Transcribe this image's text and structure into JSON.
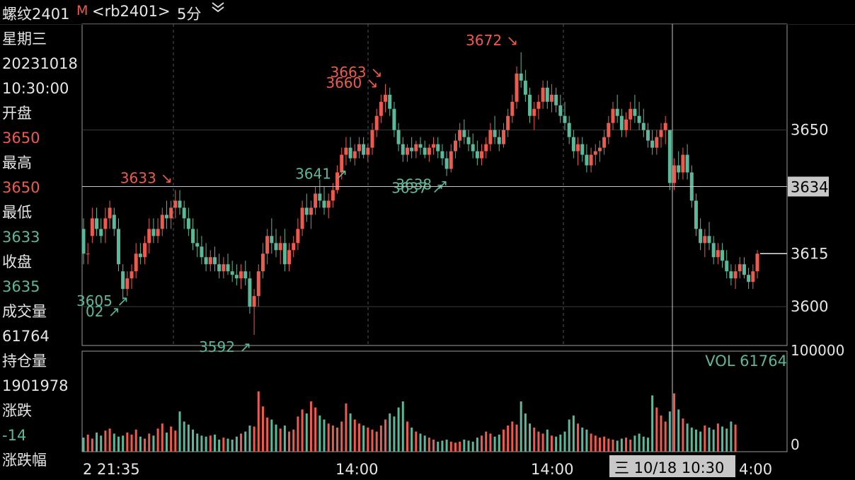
{
  "header": {
    "symbol_name": "螺纹2401",
    "main_flag": "M",
    "symbol_code": "<rb2401>",
    "period": "5分",
    "period_dropdown_icon": "double-chevron-down-icon"
  },
  "info_panel": {
    "weekday": "星期三",
    "date": "20231018",
    "time": "10:30:00",
    "fields": [
      {
        "label": "开盘",
        "value": "3650",
        "color": "red"
      },
      {
        "label": "最高",
        "value": "3650",
        "color": "red"
      },
      {
        "label": "最低",
        "value": "3633",
        "color": "green"
      },
      {
        "label": "收盘",
        "value": "3635",
        "color": "green"
      },
      {
        "label": "成交量",
        "value": "61764",
        "color": "normal"
      },
      {
        "label": "持仓量",
        "value": "1901978",
        "color": "normal"
      },
      {
        "label": "涨跌",
        "value": "-14",
        "color": "green"
      },
      {
        "label": "涨跌幅",
        "value": "",
        "color": "normal"
      }
    ]
  },
  "colors": {
    "up": "#ee5b4e",
    "down": "#5cb89a",
    "grid": "#3a3a3a",
    "crosshair": "#c8c8c8",
    "background": "#000000"
  },
  "chart_data": {
    "type": "candlestick",
    "price_axis": {
      "ticks": [
        "3650",
        "3615",
        "3600"
      ],
      "ylim": [
        3589,
        3680
      ]
    },
    "crosshair_price_label": "3634",
    "crosshair_price": 3634,
    "last_price": 3615,
    "time_axis": {
      "labels": [
        "2 21:35",
        "14:00",
        "14:00",
        "4:00"
      ]
    },
    "crosshair_time_label": "三 10/18 10:30",
    "annotations": [
      {
        "text": "3633",
        "arrow": "↘",
        "kind": "high",
        "price": 3633
      },
      {
        "text": "3663",
        "arrow": "↘",
        "kind": "high",
        "price": 3663
      },
      {
        "text": "3672",
        "arrow": "↘",
        "kind": "high",
        "price": 3672
      },
      {
        "text": "3660",
        "arrow": "↘",
        "kind": "high",
        "price": 3660
      },
      {
        "text": "02",
        "arrow": "↗",
        "kind": "low",
        "price": 3602
      },
      {
        "text": "3592",
        "arrow": "↗",
        "kind": "low",
        "price": 3592
      },
      {
        "text": "3641",
        "arrow": "↗",
        "kind": "low",
        "price": 3641
      },
      {
        "text": "3637",
        "arrow": "↗",
        "kind": "low",
        "price": 3637
      },
      {
        "text": "3638",
        "arrow": "↗",
        "kind": "low",
        "price": 3638
      },
      {
        "text": "3605",
        "arrow": "↗",
        "kind": "low",
        "price": 3605
      }
    ],
    "candles_ohlc": [
      [
        3622,
        3625,
        3612,
        3615
      ],
      [
        3615,
        3618,
        3612,
        3615
      ],
      [
        3620,
        3628,
        3618,
        3625
      ],
      [
        3625,
        3628,
        3620,
        3622
      ],
      [
        3622,
        3625,
        3618,
        3620
      ],
      [
        3622,
        3628,
        3618,
        3625
      ],
      [
        3625,
        3630,
        3622,
        3628
      ],
      [
        3626,
        3628,
        3620,
        3622
      ],
      [
        3622,
        3625,
        3610,
        3612
      ],
      [
        3610,
        3612,
        3602,
        3605
      ],
      [
        3605,
        3610,
        3603,
        3608
      ],
      [
        3608,
        3612,
        3605,
        3610
      ],
      [
        3610,
        3618,
        3608,
        3615
      ],
      [
        3615,
        3618,
        3612,
        3614
      ],
      [
        3614,
        3620,
        3612,
        3618
      ],
      [
        3618,
        3625,
        3615,
        3622
      ],
      [
        3622,
        3625,
        3618,
        3620
      ],
      [
        3620,
        3625,
        3618,
        3622
      ],
      [
        3622,
        3628,
        3620,
        3626
      ],
      [
        3626,
        3630,
        3622,
        3625
      ],
      [
        3625,
        3630,
        3622,
        3628
      ],
      [
        3628,
        3633,
        3625,
        3630
      ],
      [
        3630,
        3633,
        3626,
        3628
      ],
      [
        3628,
        3630,
        3622,
        3625
      ],
      [
        3625,
        3628,
        3620,
        3622
      ],
      [
        3622,
        3625,
        3616,
        3618
      ],
      [
        3618,
        3622,
        3614,
        3617
      ],
      [
        3617,
        3620,
        3612,
        3614
      ],
      [
        3614,
        3618,
        3610,
        3612
      ],
      [
        3612,
        3616,
        3610,
        3614
      ],
      [
        3614,
        3617,
        3610,
        3612
      ],
      [
        3612,
        3615,
        3608,
        3610
      ],
      [
        3610,
        3614,
        3608,
        3612
      ],
      [
        3612,
        3615,
        3609,
        3610
      ],
      [
        3610,
        3613,
        3607,
        3609
      ],
      [
        3609,
        3612,
        3606,
        3608
      ],
      [
        3608,
        3612,
        3605,
        3610
      ],
      [
        3610,
        3613,
        3606,
        3608
      ],
      [
        3608,
        3610,
        3598,
        3600
      ],
      [
        3600,
        3605,
        3592,
        3603
      ],
      [
        3603,
        3612,
        3600,
        3610
      ],
      [
        3610,
        3618,
        3608,
        3615
      ],
      [
        3615,
        3622,
        3612,
        3620
      ],
      [
        3620,
        3625,
        3615,
        3618
      ],
      [
        3618,
        3622,
        3614,
        3616
      ],
      [
        3616,
        3620,
        3612,
        3618
      ],
      [
        3618,
        3622,
        3610,
        3612
      ],
      [
        3612,
        3618,
        3610,
        3616
      ],
      [
        3616,
        3620,
        3614,
        3618
      ],
      [
        3618,
        3625,
        3616,
        3622
      ],
      [
        3622,
        3630,
        3620,
        3628
      ],
      [
        3628,
        3632,
        3624,
        3626
      ],
      [
        3626,
        3630,
        3622,
        3628
      ],
      [
        3628,
        3634,
        3626,
        3632
      ],
      [
        3632,
        3636,
        3628,
        3630
      ],
      [
        3630,
        3634,
        3626,
        3628
      ],
      [
        3628,
        3632,
        3625,
        3630
      ],
      [
        3630,
        3635,
        3628,
        3633
      ],
      [
        3633,
        3640,
        3632,
        3638
      ],
      [
        3638,
        3645,
        3636,
        3643
      ],
      [
        3643,
        3648,
        3640,
        3645
      ],
      [
        3645,
        3648,
        3641,
        3642
      ],
      [
        3642,
        3646,
        3640,
        3644
      ],
      [
        3644,
        3648,
        3642,
        3646
      ],
      [
        3646,
        3648,
        3642,
        3643
      ],
      [
        3643,
        3646,
        3641,
        3645
      ],
      [
        3645,
        3652,
        3643,
        3650
      ],
      [
        3650,
        3656,
        3648,
        3654
      ],
      [
        3654,
        3660,
        3652,
        3658
      ],
      [
        3658,
        3663,
        3655,
        3660
      ],
      [
        3660,
        3662,
        3654,
        3656
      ],
      [
        3656,
        3658,
        3648,
        3650
      ],
      [
        3650,
        3652,
        3644,
        3646
      ],
      [
        3646,
        3648,
        3641,
        3643
      ],
      [
        3643,
        3646,
        3641,
        3645
      ],
      [
        3645,
        3648,
        3642,
        3644
      ],
      [
        3644,
        3647,
        3642,
        3646
      ],
      [
        3646,
        3648,
        3643,
        3645
      ],
      [
        3645,
        3647,
        3642,
        3643
      ],
      [
        3643,
        3646,
        3641,
        3645
      ],
      [
        3645,
        3648,
        3643,
        3646
      ],
      [
        3646,
        3648,
        3642,
        3644
      ],
      [
        3644,
        3646,
        3640,
        3642
      ],
      [
        3642,
        3644,
        3637,
        3639
      ],
      [
        3639,
        3646,
        3638,
        3644
      ],
      [
        3644,
        3649,
        3642,
        3647
      ],
      [
        3647,
        3652,
        3645,
        3650
      ],
      [
        3650,
        3653,
        3646,
        3648
      ],
      [
        3648,
        3650,
        3644,
        3646
      ],
      [
        3646,
        3649,
        3642,
        3644
      ],
      [
        3644,
        3647,
        3640,
        3642
      ],
      [
        3642,
        3646,
        3640,
        3644
      ],
      [
        3644,
        3648,
        3642,
        3646
      ],
      [
        3646,
        3652,
        3644,
        3650
      ],
      [
        3650,
        3654,
        3646,
        3648
      ],
      [
        3648,
        3650,
        3644,
        3646
      ],
      [
        3646,
        3652,
        3645,
        3650
      ],
      [
        3650,
        3656,
        3648,
        3654
      ],
      [
        3654,
        3660,
        3652,
        3658
      ],
      [
        3658,
        3668,
        3656,
        3666
      ],
      [
        3666,
        3672,
        3662,
        3664
      ],
      [
        3664,
        3667,
        3658,
        3660
      ],
      [
        3660,
        3662,
        3652,
        3654
      ],
      [
        3654,
        3658,
        3650,
        3656
      ],
      [
        3656,
        3660,
        3653,
        3658
      ],
      [
        3658,
        3664,
        3656,
        3662
      ],
      [
        3662,
        3664,
        3656,
        3658
      ],
      [
        3658,
        3663,
        3655,
        3660
      ],
      [
        3660,
        3662,
        3655,
        3657
      ],
      [
        3657,
        3660,
        3652,
        3654
      ],
      [
        3654,
        3658,
        3650,
        3652
      ],
      [
        3652,
        3654,
        3646,
        3648
      ],
      [
        3648,
        3650,
        3642,
        3644
      ],
      [
        3644,
        3648,
        3640,
        3646
      ],
      [
        3646,
        3648,
        3641,
        3643
      ],
      [
        3643,
        3646,
        3638,
        3640
      ],
      [
        3640,
        3645,
        3638,
        3643
      ],
      [
        3643,
        3646,
        3640,
        3644
      ],
      [
        3644,
        3647,
        3641,
        3645
      ],
      [
        3645,
        3650,
        3643,
        3648
      ],
      [
        3648,
        3654,
        3646,
        3652
      ],
      [
        3652,
        3658,
        3650,
        3656
      ],
      [
        3656,
        3660,
        3652,
        3654
      ],
      [
        3654,
        3656,
        3648,
        3650
      ],
      [
        3650,
        3655,
        3648,
        3653
      ],
      [
        3653,
        3658,
        3650,
        3656
      ],
      [
        3656,
        3660,
        3652,
        3654
      ],
      [
        3654,
        3658,
        3650,
        3652
      ],
      [
        3652,
        3656,
        3648,
        3650
      ],
      [
        3650,
        3652,
        3645,
        3647
      ],
      [
        3647,
        3650,
        3643,
        3645
      ],
      [
        3645,
        3650,
        3643,
        3648
      ],
      [
        3648,
        3652,
        3645,
        3650
      ],
      [
        3650,
        3654,
        3646,
        3652
      ],
      [
        3650,
        3650,
        3633,
        3635
      ],
      [
        3635,
        3642,
        3633,
        3640
      ],
      [
        3640,
        3644,
        3636,
        3638
      ],
      [
        3638,
        3645,
        3636,
        3643
      ],
      [
        3643,
        3646,
        3636,
        3638
      ],
      [
        3638,
        3640,
        3628,
        3630
      ],
      [
        3630,
        3632,
        3620,
        3622
      ],
      [
        3622,
        3625,
        3616,
        3618
      ],
      [
        3618,
        3622,
        3614,
        3620
      ],
      [
        3620,
        3624,
        3616,
        3618
      ],
      [
        3618,
        3620,
        3612,
        3614
      ],
      [
        3614,
        3618,
        3612,
        3616
      ],
      [
        3616,
        3618,
        3611,
        3613
      ],
      [
        3613,
        3616,
        3608,
        3610
      ],
      [
        3610,
        3612,
        3606,
        3608
      ],
      [
        3608,
        3612,
        3605,
        3610
      ],
      [
        3610,
        3614,
        3608,
        3612
      ],
      [
        3612,
        3614,
        3608,
        3609
      ],
      [
        3609,
        3611,
        3605,
        3607
      ],
      [
        3607,
        3612,
        3605,
        3610
      ],
      [
        3610,
        3616,
        3608,
        3615
      ]
    ],
    "volume_panel": {
      "label": "VOL",
      "value": "61764",
      "ticks": [
        "100000",
        "0"
      ],
      "ylim": [
        0,
        100000
      ]
    },
    "volumes": [
      14000,
      17000,
      13000,
      19000,
      16000,
      21000,
      23000,
      18000,
      15000,
      16000,
      19000,
      17000,
      22000,
      15000,
      13000,
      18000,
      16000,
      23000,
      28000,
      19000,
      25000,
      21000,
      40000,
      30000,
      27000,
      22000,
      18000,
      16000,
      15000,
      16000,
      17000,
      12000,
      14000,
      13000,
      12000,
      15000,
      18000,
      20000,
      26000,
      25000,
      60000,
      45000,
      34000,
      32000,
      27000,
      23000,
      26000,
      20000,
      22000,
      35000,
      42000,
      38000,
      50000,
      44000,
      36000,
      32000,
      28000,
      26000,
      24000,
      30000,
      48000,
      38000,
      32000,
      28000,
      26000,
      24000,
      22000,
      20000,
      26000,
      32000,
      38000,
      35000,
      44000,
      50000,
      30000,
      24000,
      20000,
      18000,
      16000,
      14000,
      12000,
      10000,
      11000,
      12000,
      10000,
      9000,
      10000,
      12000,
      11000,
      10000,
      14000,
      16000,
      20000,
      18000,
      15000,
      17000,
      22000,
      26000,
      30000,
      27000,
      50000,
      38000,
      28000,
      24000,
      20000,
      18000,
      22000,
      16000,
      15000,
      17000,
      20000,
      32000,
      36000,
      28000,
      24000,
      22000,
      18000,
      16000,
      14000,
      15000,
      13000,
      12000,
      11000,
      13000,
      14000,
      12000,
      16000,
      18000,
      15000,
      14000,
      56000,
      44000,
      36000,
      30000,
      40000,
      58000,
      42000,
      33000,
      28000,
      24000,
      22000,
      20000,
      26000,
      24000,
      22000,
      28000,
      25000,
      23000,
      30000,
      27000
    ]
  }
}
